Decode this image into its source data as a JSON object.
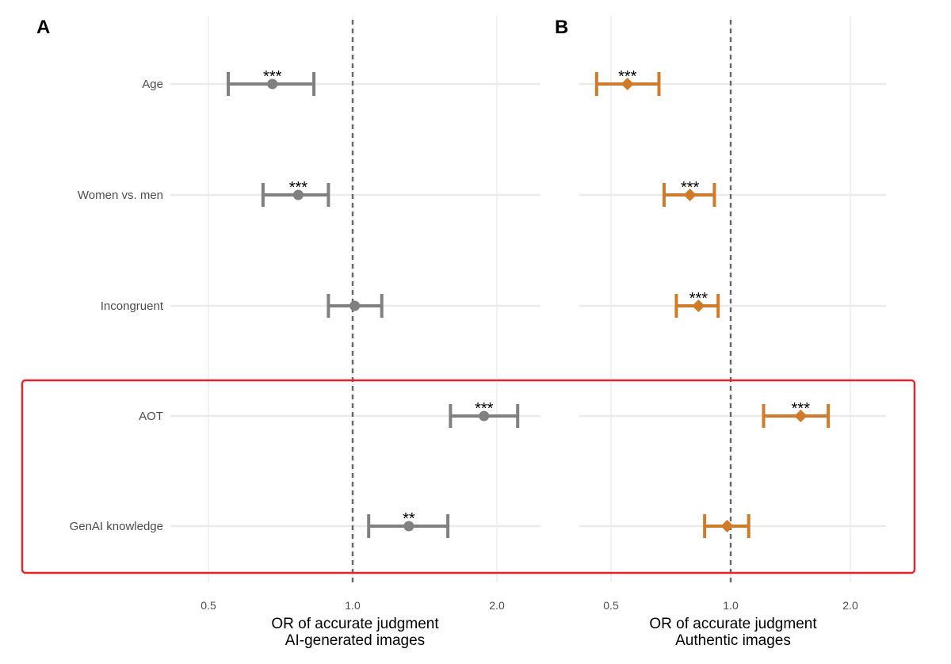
{
  "chart_data": [
    {
      "type": "forest",
      "panel_label": "A",
      "xlabel": [
        "OR of accurate judgment",
        "AI-generated images"
      ],
      "ylabel": "",
      "x_scale": "log",
      "xlim": [
        0.39,
        2.6
      ],
      "x_ticks": [
        0.5,
        1.0,
        2.0
      ],
      "x_tick_labels": [
        "0.5",
        "1.0",
        "2.0"
      ],
      "reference_line": 1.0,
      "grid": true,
      "marker": "circle",
      "color": "#808080",
      "categories": [
        "Age",
        "Women vs. men",
        "Incongruent",
        "AOT",
        "GenAI knowledge"
      ],
      "estimates": [
        0.68,
        0.77,
        1.01,
        1.88,
        1.31
      ],
      "ci_lower": [
        0.55,
        0.65,
        0.89,
        1.6,
        1.08
      ],
      "ci_upper": [
        0.83,
        0.89,
        1.15,
        2.21,
        1.58
      ],
      "significance": [
        "***",
        "***",
        "",
        "***",
        "**"
      ]
    },
    {
      "type": "forest",
      "panel_label": "B",
      "xlabel": [
        "OR of accurate judgment",
        "Authentic images"
      ],
      "ylabel": "",
      "x_scale": "log",
      "xlim": [
        0.39,
        2.6
      ],
      "x_ticks": [
        0.5,
        1.0,
        2.0
      ],
      "x_tick_labels": [
        "0.5",
        "1.0",
        "2.0"
      ],
      "reference_line": 1.0,
      "grid": true,
      "marker": "diamond",
      "color": "#d07b2a",
      "categories": [
        "Age",
        "Women vs. men",
        "Incongruent",
        "AOT",
        "GenAI knowledge"
      ],
      "estimates": [
        0.55,
        0.79,
        0.83,
        1.5,
        0.98
      ],
      "ci_lower": [
        0.46,
        0.68,
        0.73,
        1.21,
        0.86
      ],
      "ci_upper": [
        0.66,
        0.91,
        0.93,
        1.76,
        1.11
      ],
      "significance": [
        "***",
        "***",
        "***",
        "***",
        ""
      ]
    }
  ],
  "highlight": {
    "rows": [
      "AOT",
      "GenAI knowledge"
    ],
    "color": "#e8212a"
  }
}
